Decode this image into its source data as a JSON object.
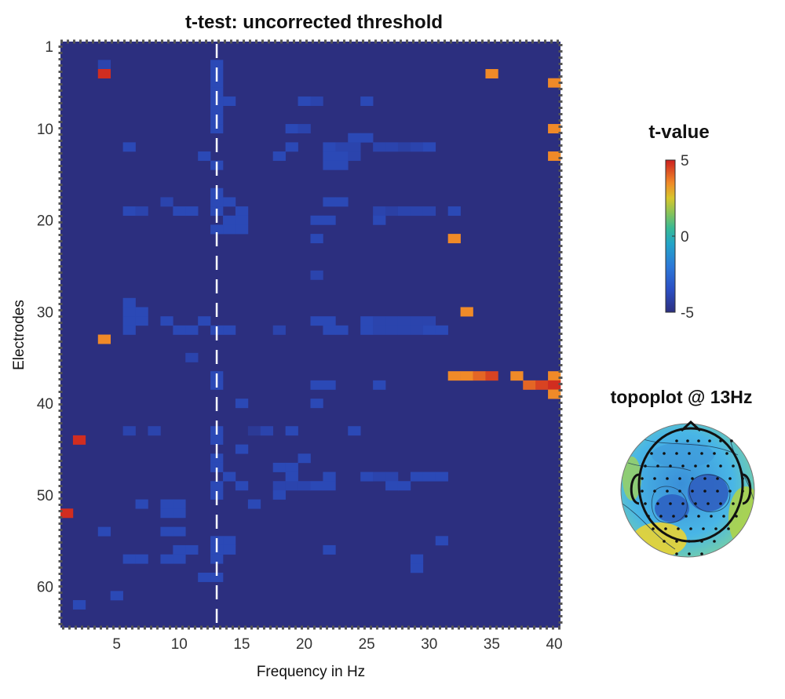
{
  "chart_data": {
    "type": "heatmap",
    "title": "t-test: uncorrected threshold",
    "xlabel": "Frequency in Hz",
    "ylabel": "Electrodes",
    "x_ticks": [
      5,
      10,
      15,
      20,
      25,
      30,
      35,
      40
    ],
    "y_ticks": [
      1,
      10,
      20,
      30,
      40,
      50,
      60
    ],
    "x_range": [
      1,
      40
    ],
    "y_range": [
      1,
      64
    ],
    "background_value": -5,
    "vline_hz": 13,
    "colorbar": {
      "title": "t-value",
      "ticks": [
        5,
        0,
        -5
      ],
      "range": [
        -5,
        5
      ]
    },
    "cells": [
      [
        4,
        3,
        -4
      ],
      [
        4,
        4,
        4.8
      ],
      [
        35,
        4,
        3.5
      ],
      [
        40,
        5,
        3.5
      ],
      [
        13,
        3,
        -3.8
      ],
      [
        13,
        4,
        -3.8
      ],
      [
        13,
        5,
        -3.8
      ],
      [
        13,
        6,
        -3.8
      ],
      [
        13,
        7,
        -3.8
      ],
      [
        13,
        8,
        -3.8
      ],
      [
        13,
        9,
        -3.8
      ],
      [
        13,
        10,
        -3.8
      ],
      [
        14,
        7,
        -3.8
      ],
      [
        20,
        7,
        -3.8
      ],
      [
        21,
        7,
        -4
      ],
      [
        25,
        7,
        -3.8
      ],
      [
        19,
        10,
        -3.8
      ],
      [
        20,
        10,
        -4
      ],
      [
        40,
        10,
        3.5
      ],
      [
        24,
        11,
        -3.8
      ],
      [
        25,
        11,
        -3.8
      ],
      [
        6,
        12,
        -3.8
      ],
      [
        19,
        12,
        -3.8
      ],
      [
        22,
        12,
        -3.8
      ],
      [
        23,
        12,
        -4
      ],
      [
        24,
        12,
        -4
      ],
      [
        26,
        12,
        -4
      ],
      [
        27,
        12,
        -4
      ],
      [
        28,
        12,
        -4.2
      ],
      [
        29,
        12,
        -4
      ],
      [
        30,
        12,
        -3.8
      ],
      [
        12,
        13,
        -3.8
      ],
      [
        18,
        13,
        -3.8
      ],
      [
        22,
        13,
        -3.8
      ],
      [
        23,
        13,
        -3.8
      ],
      [
        24,
        13,
        -4
      ],
      [
        40,
        13,
        3.5
      ],
      [
        13,
        14,
        -3.8
      ],
      [
        22,
        14,
        -3.8
      ],
      [
        23,
        14,
        -3.8
      ],
      [
        13,
        17,
        -3.8
      ],
      [
        13,
        18,
        -3.8
      ],
      [
        14,
        18,
        -3.8
      ],
      [
        9,
        18,
        -4
      ],
      [
        22,
        18,
        -3.8
      ],
      [
        23,
        18,
        -3.8
      ],
      [
        6,
        19,
        -3.8
      ],
      [
        7,
        19,
        -4
      ],
      [
        10,
        19,
        -3.8
      ],
      [
        11,
        19,
        -3.8
      ],
      [
        13,
        19,
        -3.8
      ],
      [
        15,
        19,
        -3.8
      ],
      [
        26,
        19,
        -4
      ],
      [
        27,
        19,
        -4.2
      ],
      [
        28,
        19,
        -4
      ],
      [
        29,
        19,
        -4
      ],
      [
        30,
        19,
        -4
      ],
      [
        32,
        19,
        -3.8
      ],
      [
        14,
        20,
        -3.8
      ],
      [
        15,
        20,
        -3.8
      ],
      [
        21,
        20,
        -3.8
      ],
      [
        22,
        20,
        -3.8
      ],
      [
        26,
        20,
        -3.8
      ],
      [
        13,
        21,
        -3.8
      ],
      [
        14,
        21,
        -3.8
      ],
      [
        15,
        21,
        -3.8
      ],
      [
        21,
        22,
        -3.8
      ],
      [
        32,
        22,
        3.5
      ],
      [
        21,
        26,
        -4
      ],
      [
        6,
        29,
        -3.8
      ],
      [
        6,
        30,
        -3.8
      ],
      [
        7,
        30,
        -3.8
      ],
      [
        33,
        30,
        3.5
      ],
      [
        6,
        31,
        -3.8
      ],
      [
        7,
        31,
        -3.8
      ],
      [
        9,
        31,
        -3.8
      ],
      [
        12,
        31,
        -3.8
      ],
      [
        21,
        31,
        -3.8
      ],
      [
        22,
        31,
        -3.8
      ],
      [
        25,
        31,
        -3.8
      ],
      [
        26,
        31,
        -4
      ],
      [
        27,
        31,
        -4
      ],
      [
        28,
        31,
        -4
      ],
      [
        29,
        31,
        -4
      ],
      [
        30,
        31,
        -4
      ],
      [
        6,
        32,
        -3.8
      ],
      [
        10,
        32,
        -3.8
      ],
      [
        11,
        32,
        -3.8
      ],
      [
        13,
        32,
        -3.8
      ],
      [
        14,
        32,
        -3.8
      ],
      [
        18,
        32,
        -4
      ],
      [
        22,
        32,
        -3.8
      ],
      [
        23,
        32,
        -3.8
      ],
      [
        25,
        32,
        -3.8
      ],
      [
        26,
        32,
        -4
      ],
      [
        27,
        32,
        -4
      ],
      [
        28,
        32,
        -4
      ],
      [
        29,
        32,
        -4
      ],
      [
        30,
        32,
        -3.8
      ],
      [
        31,
        32,
        -3.8
      ],
      [
        4,
        33,
        3.5
      ],
      [
        11,
        35,
        -4
      ],
      [
        13,
        37,
        -3.8
      ],
      [
        32,
        37,
        3.5
      ],
      [
        33,
        37,
        3.5
      ],
      [
        34,
        37,
        4
      ],
      [
        35,
        37,
        4.5
      ],
      [
        37,
        37,
        3.5
      ],
      [
        40,
        37,
        3.5
      ],
      [
        13,
        38,
        -3.8
      ],
      [
        21,
        38,
        -3.8
      ],
      [
        22,
        38,
        -3.8
      ],
      [
        26,
        38,
        -3.8
      ],
      [
        38,
        38,
        4
      ],
      [
        39,
        38,
        4.5
      ],
      [
        40,
        38,
        4.8
      ],
      [
        40,
        39,
        3.5
      ],
      [
        15,
        40,
        -3.8
      ],
      [
        21,
        40,
        -3.8
      ],
      [
        2,
        44,
        4.8
      ],
      [
        6,
        43,
        -4
      ],
      [
        8,
        43,
        -4
      ],
      [
        13,
        43,
        -3.8
      ],
      [
        16,
        43,
        -4.5
      ],
      [
        17,
        43,
        -4
      ],
      [
        19,
        43,
        -3.8
      ],
      [
        24,
        43,
        -3.8
      ],
      [
        13,
        44,
        -3.8
      ],
      [
        15,
        45,
        -3.8
      ],
      [
        13,
        46,
        -3.8
      ],
      [
        20,
        46,
        -3.8
      ],
      [
        13,
        47,
        -3.8
      ],
      [
        18,
        47,
        -3.8
      ],
      [
        19,
        47,
        -3.8
      ],
      [
        14,
        48,
        -3.8
      ],
      [
        19,
        48,
        -3.8
      ],
      [
        22,
        48,
        -3.8
      ],
      [
        25,
        48,
        -3.8
      ],
      [
        26,
        48,
        -4
      ],
      [
        27,
        48,
        -4
      ],
      [
        29,
        48,
        -3.8
      ],
      [
        30,
        48,
        -3.8
      ],
      [
        31,
        48,
        -3.8
      ],
      [
        13,
        49,
        -3.8
      ],
      [
        15,
        49,
        -3.8
      ],
      [
        18,
        49,
        -4
      ],
      [
        19,
        49,
        -4
      ],
      [
        20,
        49,
        -4
      ],
      [
        21,
        49,
        -3.8
      ],
      [
        22,
        49,
        -3.8
      ],
      [
        27,
        49,
        -3.8
      ],
      [
        28,
        49,
        -3.8
      ],
      [
        13,
        50,
        -3.8
      ],
      [
        18,
        50,
        -3.8
      ],
      [
        7,
        51,
        -3.8
      ],
      [
        9,
        51,
        -3.8
      ],
      [
        10,
        51,
        -3.8
      ],
      [
        16,
        51,
        -3.8
      ],
      [
        1,
        52,
        4.8
      ],
      [
        9,
        52,
        -3.8
      ],
      [
        10,
        52,
        -3.8
      ],
      [
        4,
        54,
        -3.8
      ],
      [
        9,
        54,
        -3.8
      ],
      [
        10,
        54,
        -3.8
      ],
      [
        13,
        55,
        -3.8
      ],
      [
        14,
        55,
        -3.8
      ],
      [
        31,
        55,
        -3.8
      ],
      [
        10,
        56,
        -3.8
      ],
      [
        11,
        56,
        -3.8
      ],
      [
        13,
        56,
        -3.8
      ],
      [
        14,
        56,
        -3.8
      ],
      [
        22,
        56,
        -3.8
      ],
      [
        6,
        57,
        -3.8
      ],
      [
        7,
        57,
        -3.8
      ],
      [
        9,
        57,
        -3.8
      ],
      [
        10,
        57,
        -3.8
      ],
      [
        13,
        57,
        -3.8
      ],
      [
        29,
        57,
        -3.8
      ],
      [
        29,
        58,
        -3.8
      ],
      [
        12,
        59,
        -3.8
      ],
      [
        13,
        59,
        -3.8
      ],
      [
        5,
        61,
        -3.8
      ],
      [
        2,
        62,
        -3.8
      ]
    ]
  },
  "topoplot": {
    "title": "topoplot @ 13Hz"
  }
}
